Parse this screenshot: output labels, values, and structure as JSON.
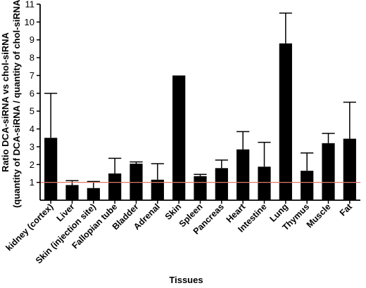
{
  "chart_data": {
    "type": "bar",
    "categories": [
      "kidney (cortex)",
      "Liver",
      "Skin (injection site)",
      "Fallopian tube",
      "Bladder",
      "Adrenal",
      "Skin",
      "Spleen",
      "Pancreas",
      "Heart",
      "Intestine",
      "Lung",
      "Thymus",
      "Muscle",
      "Fat"
    ],
    "values": [
      3.5,
      0.85,
      0.68,
      1.5,
      2.05,
      1.15,
      7.0,
      1.35,
      1.8,
      2.85,
      1.88,
      8.8,
      1.65,
      3.2,
      3.45
    ],
    "error_upper": [
      6.0,
      1.1,
      1.05,
      2.35,
      2.15,
      2.05,
      7.0,
      1.45,
      2.25,
      3.85,
      3.25,
      10.5,
      2.65,
      3.75,
      5.5
    ],
    "reference_line": {
      "y": 1,
      "color": "#e07a6a"
    },
    "ylim": [
      0,
      11
    ],
    "yticks": [
      1,
      2,
      3,
      4,
      5,
      6,
      7,
      8,
      9,
      10,
      11
    ],
    "ylabel_line1": "Ratio DCA-siRNA vs chol-siRNA",
    "ylabel_line2": "(quantity of DCA-siRNA / quantity of chol-siRNA)",
    "xlabel": "Tissues",
    "bar_color": "#000000",
    "grid": false,
    "legend": "none"
  }
}
